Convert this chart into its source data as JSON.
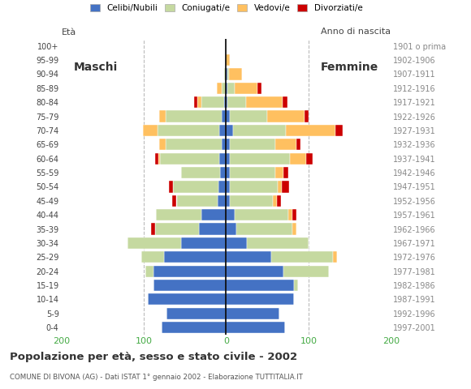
{
  "age_groups": [
    "0-4",
    "5-9",
    "10-14",
    "15-19",
    "20-24",
    "25-29",
    "30-34",
    "35-39",
    "40-44",
    "45-49",
    "50-54",
    "55-59",
    "60-64",
    "65-69",
    "70-74",
    "75-79",
    "80-84",
    "85-89",
    "90-94",
    "95-99",
    "100+"
  ],
  "birth_years": [
    "1997-2001",
    "1992-1996",
    "1987-1991",
    "1982-1986",
    "1977-1981",
    "1972-1976",
    "1967-1971",
    "1962-1966",
    "1957-1961",
    "1952-1956",
    "1947-1951",
    "1942-1946",
    "1937-1941",
    "1932-1936",
    "1927-1931",
    "1922-1926",
    "1917-1921",
    "1912-1916",
    "1907-1911",
    "1902-1906",
    "1901 o prima"
  ],
  "male": {
    "celibi": [
      78,
      72,
      95,
      88,
      88,
      75,
      55,
      33,
      30,
      10,
      9,
      7,
      8,
      5,
      8,
      5,
      2,
      0,
      0,
      0,
      0
    ],
    "coniugati": [
      0,
      0,
      0,
      0,
      10,
      28,
      65,
      53,
      55,
      50,
      55,
      48,
      72,
      68,
      75,
      68,
      28,
      5,
      2,
      0,
      0
    ],
    "vedovi": [
      0,
      0,
      0,
      0,
      0,
      0,
      0,
      0,
      0,
      0,
      0,
      0,
      2,
      8,
      18,
      8,
      5,
      6,
      0,
      0,
      0
    ],
    "divorziati": [
      0,
      0,
      0,
      0,
      0,
      0,
      0,
      5,
      0,
      5,
      5,
      0,
      4,
      0,
      0,
      0,
      4,
      0,
      0,
      0,
      0
    ]
  },
  "female": {
    "celibi": [
      72,
      65,
      82,
      82,
      70,
      55,
      25,
      12,
      10,
      5,
      5,
      5,
      5,
      5,
      8,
      5,
      2,
      2,
      2,
      0,
      0
    ],
    "coniugati": [
      0,
      0,
      0,
      5,
      55,
      75,
      75,
      68,
      65,
      52,
      58,
      55,
      72,
      55,
      65,
      45,
      22,
      8,
      2,
      0,
      0
    ],
    "vedovi": [
      0,
      0,
      0,
      0,
      0,
      5,
      0,
      5,
      5,
      5,
      5,
      10,
      20,
      25,
      60,
      45,
      45,
      28,
      15,
      5,
      0
    ],
    "divorziati": [
      0,
      0,
      0,
      0,
      0,
      0,
      0,
      0,
      5,
      5,
      8,
      5,
      8,
      5,
      8,
      5,
      5,
      5,
      0,
      0,
      0
    ]
  },
  "colors": {
    "celibi": "#4472c4",
    "coniugati": "#c5d9a0",
    "vedovi": "#ffc060",
    "divorziati": "#cc0000"
  },
  "legend_labels": [
    "Celibi/Nubili",
    "Coniugati/e",
    "Vedovi/e",
    "Divorziati/e"
  ],
  "title": "Popolazione per età, sesso e stato civile - 2002",
  "subtitle": "COMUNE DI BIVONA (AG) - Dati ISTAT 1° gennaio 2002 - Elaborazione TUTTITALIA.IT",
  "xlabel_left": "Maschi",
  "xlabel_right": "Femmine",
  "ylabel_left": "Età",
  "ylabel_right": "Anno di nascita",
  "xlim": 200,
  "background_color": "#ffffff",
  "grid_color": "#bbbbbb"
}
